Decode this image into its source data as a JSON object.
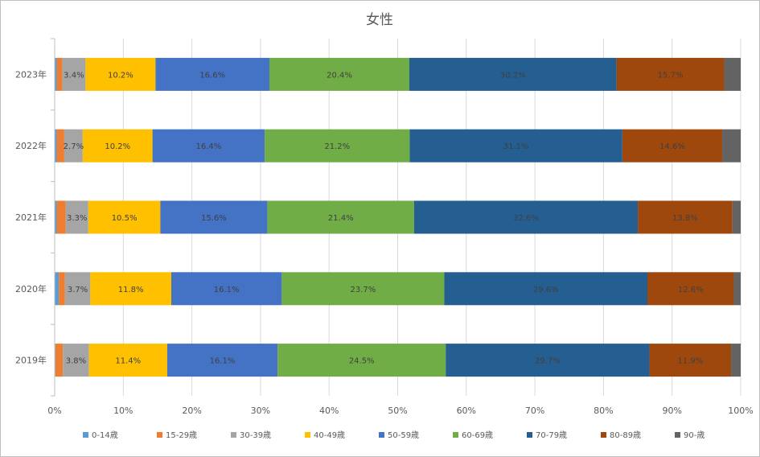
{
  "chart_data": {
    "type": "bar",
    "orientation": "horizontal",
    "stacked": "percent",
    "title": "女性",
    "categories": [
      "2023年",
      "2022年",
      "2021年",
      "2020年",
      "2019年"
    ],
    "x_ticks": [
      "0%",
      "10%",
      "20%",
      "30%",
      "40%",
      "50%",
      "60%",
      "70%",
      "80%",
      "90%",
      "100%"
    ],
    "xlim": [
      0,
      100
    ],
    "grid": true,
    "legend_position": "bottom",
    "series": [
      {
        "name": "0-14歳",
        "color": "#5b9bd5",
        "values": [
          0.3,
          0.3,
          0.3,
          0.6,
          0.1
        ],
        "labels": [
          "",
          "",
          "",
          "",
          ""
        ]
      },
      {
        "name": "15-29歳",
        "color": "#ed7d31",
        "values": [
          0.8,
          1.1,
          1.3,
          0.9,
          1.1
        ],
        "labels": [
          "",
          "",
          "",
          "",
          ""
        ]
      },
      {
        "name": "30-39歳",
        "color": "#a5a5a5",
        "values": [
          3.4,
          2.7,
          3.3,
          3.7,
          3.8
        ],
        "labels": [
          "3.4%",
          "2.7%",
          "3.3%",
          "3.7%",
          "3.8%"
        ]
      },
      {
        "name": "40-49歳",
        "color": "#ffc000",
        "values": [
          10.2,
          10.2,
          10.5,
          11.8,
          11.4
        ],
        "labels": [
          "10.2%",
          "10.2%",
          "10.5%",
          "11.8%",
          "11.4%"
        ]
      },
      {
        "name": "50-59歳",
        "color": "#4472c4",
        "values": [
          16.6,
          16.4,
          15.6,
          16.1,
          16.1
        ],
        "labels": [
          "16.6%",
          "16.4%",
          "15.6%",
          "16.1%",
          "16.1%"
        ]
      },
      {
        "name": "60-69歳",
        "color": "#70ad47",
        "values": [
          20.4,
          21.2,
          21.4,
          23.7,
          24.5
        ],
        "labels": [
          "20.4%",
          "21.2%",
          "21.4%",
          "23.7%",
          "24.5%"
        ]
      },
      {
        "name": "70-79歳",
        "color": "#255e91",
        "values": [
          30.2,
          31.1,
          32.6,
          29.6,
          29.7
        ],
        "labels": [
          "30.2%",
          "31.1%",
          "32.6%",
          "29.6%",
          "29.7%"
        ]
      },
      {
        "name": "80-89歳",
        "color": "#9e480e",
        "values": [
          15.7,
          14.6,
          13.8,
          12.6,
          11.9
        ],
        "labels": [
          "15.7%",
          "14.6%",
          "13.8%",
          "12.6%",
          "11.9%"
        ]
      },
      {
        "name": "90-歳",
        "color": "#636363",
        "values": [
          2.4,
          2.7,
          1.2,
          1.0,
          1.4
        ],
        "labels": [
          "",
          "",
          "",
          "",
          ""
        ]
      }
    ]
  }
}
